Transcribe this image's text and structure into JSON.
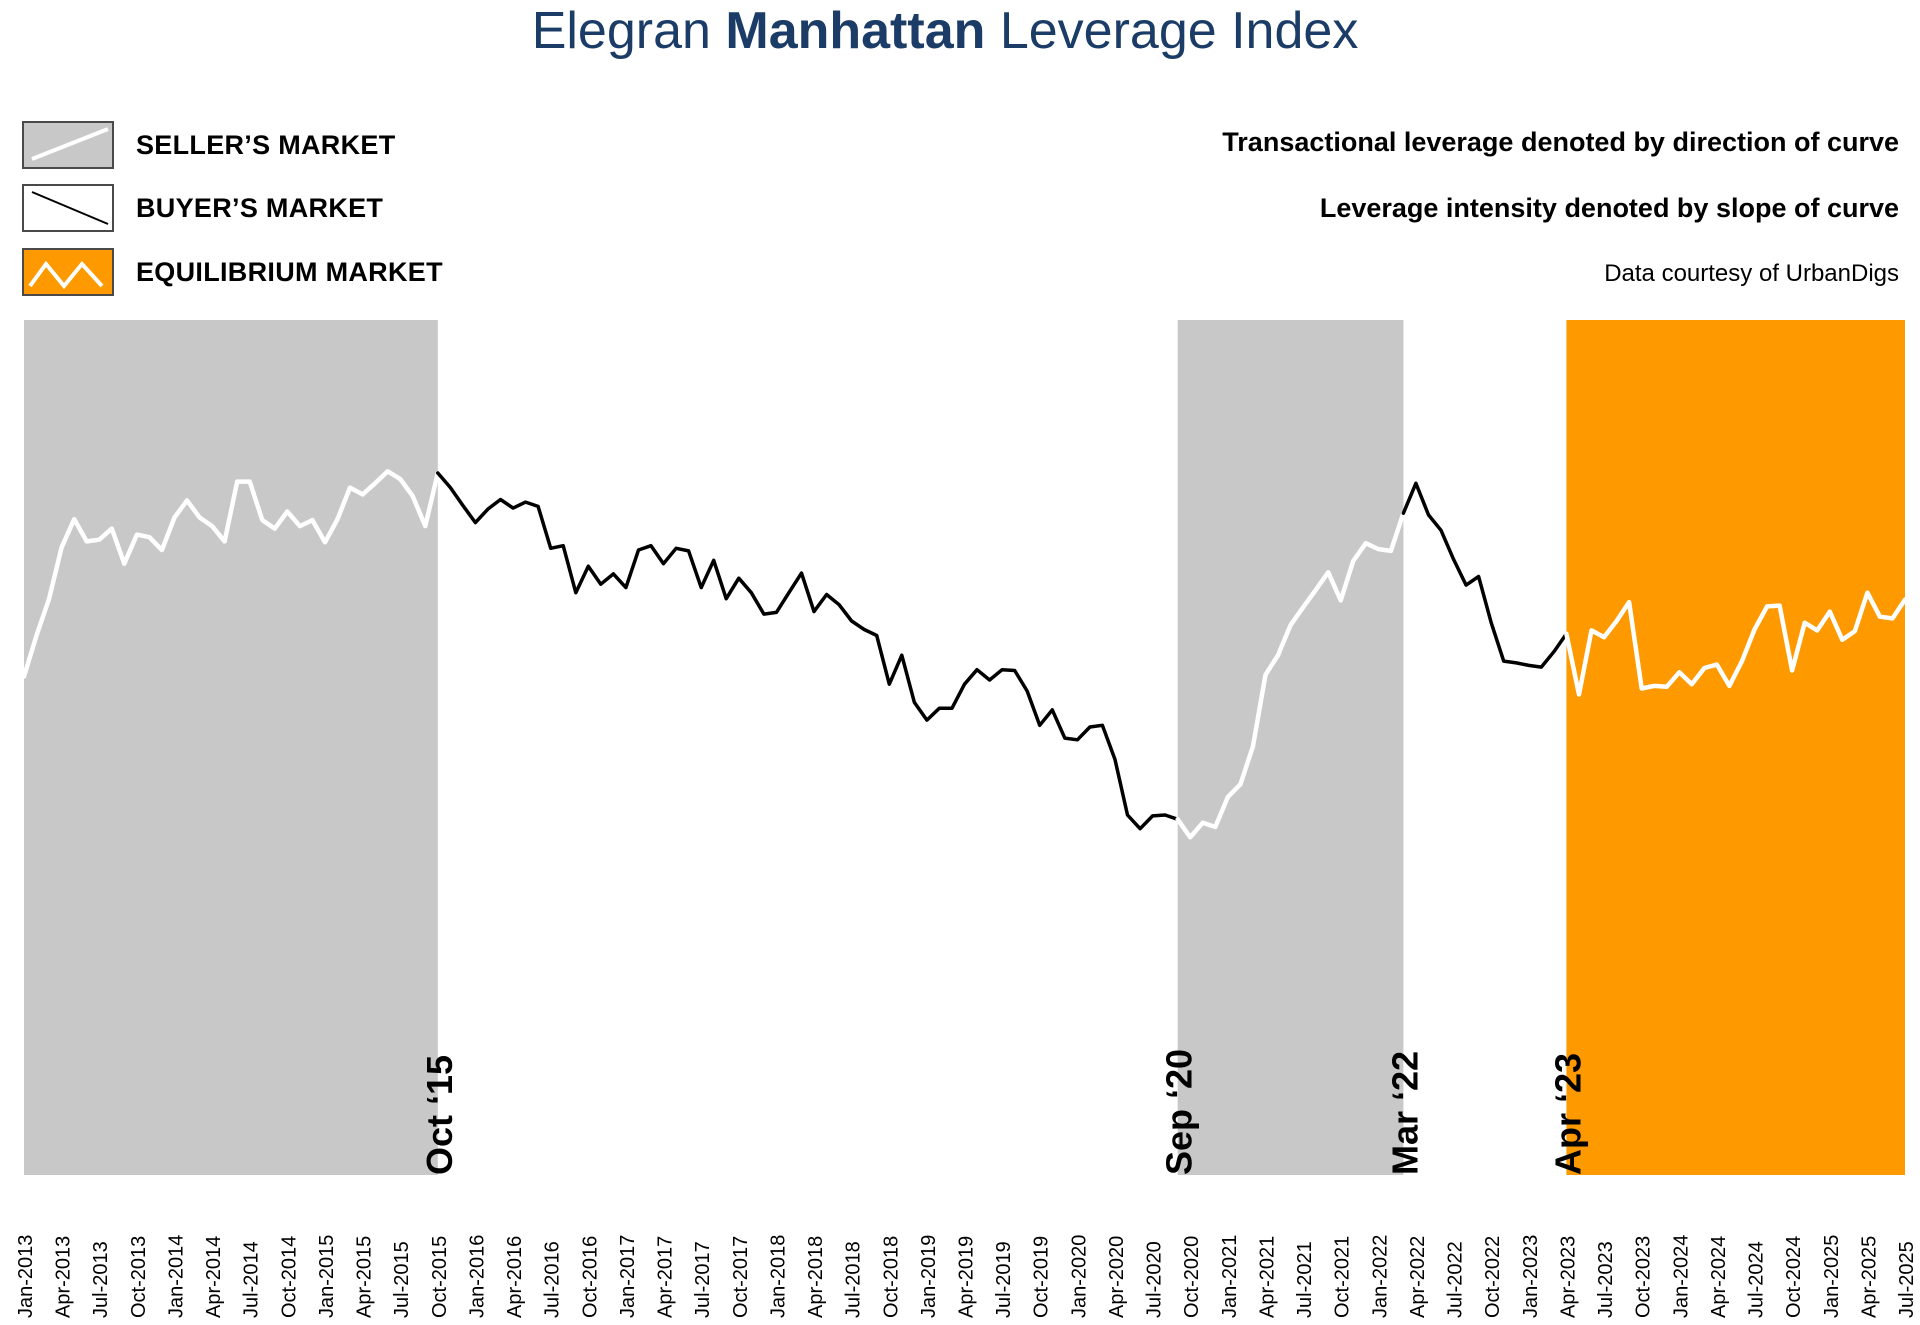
{
  "header": {
    "title_prefix": "Elegran ",
    "title_bold": "Manhattan",
    "title_suffix": " Leverage Index"
  },
  "legend": [
    {
      "label": "SELLER’S MARKET",
      "icon": "rising-line-icon",
      "fill": "#c8c8c8",
      "line": "#ffffff"
    },
    {
      "label": "BUYER’S MARKET",
      "icon": "falling-line-icon",
      "fill": "#ffffff",
      "line": "#000000"
    },
    {
      "label": "EQUILIBRIUM MARKET",
      "icon": "zigzag-line-icon",
      "fill": "#ff9900",
      "line": "#ffffff"
    }
  ],
  "notes": {
    "direction": "Transactional leverage denoted by direction of curve",
    "slope": "Leverage intensity denoted by slope of curve",
    "source": "Data courtesy of UrbanDigs"
  },
  "colors": {
    "title": "#1b3c66",
    "seller_band": "#c8c8c8",
    "equilibrium_band": "#ff9900",
    "seller_line": "#ffffff",
    "buyer_line": "#000000",
    "equilibrium_line": "#ffffff"
  },
  "chart_data": {
    "type": "line",
    "title": "",
    "xlabel": "",
    "ylabel": "",
    "x_start": "Jan-2013",
    "x_end": "Jul-2025",
    "x_tick_labels": [
      "Jan-2013",
      "Apr-2013",
      "Jul-2013",
      "Oct-2013",
      "Jan-2014",
      "Apr-2014",
      "Jul-2014",
      "Oct-2014",
      "Jan-2015",
      "Apr-2015",
      "Jul-2015",
      "Oct-2015",
      "Jan-2016",
      "Apr-2016",
      "Jul-2016",
      "Oct-2016",
      "Jan-2017",
      "Apr-2017",
      "Jul-2017",
      "Oct-2017",
      "Jan-2018",
      "Apr-2018",
      "Jul-2018",
      "Oct-2018",
      "Jan-2019",
      "Apr-2019",
      "Jul-2019",
      "Oct-2019",
      "Jan-2020",
      "Apr-2020",
      "Jul-2020",
      "Oct-2020",
      "Jan-2021",
      "Apr-2021",
      "Jul-2021",
      "Oct-2021",
      "Jan-2022",
      "Apr-2022",
      "Jul-2022",
      "Oct-2022",
      "Jan-2023",
      "Apr-2023",
      "Jul-2023",
      "Oct-2023",
      "Jan-2024",
      "Apr-2024",
      "Jul-2024",
      "Oct-2024",
      "Jan-2025",
      "Apr-2025",
      "Jul-2025"
    ],
    "ylim": [
      0,
      100
    ],
    "y_axis_shown": false,
    "values": [
      58.3,
      63.1,
      67.4,
      73.4,
      76.7,
      74.1,
      74.3,
      75.6,
      71.5,
      74.9,
      74.6,
      73.1,
      76.9,
      78.9,
      76.9,
      75.9,
      74.1,
      81.1,
      81.1,
      76.6,
      75.6,
      77.6,
      75.9,
      76.6,
      74.0,
      76.7,
      80.4,
      79.6,
      80.9,
      82.3,
      81.4,
      79.4,
      75.9,
      82.1,
      80.4,
      78.3,
      76.3,
      77.9,
      79.0,
      78.0,
      78.7,
      78.2,
      73.3,
      73.6,
      68.1,
      71.2,
      69.1,
      70.3,
      68.7,
      73.1,
      73.6,
      71.5,
      73.3,
      73.0,
      68.7,
      71.9,
      67.4,
      69.8,
      68.1,
      65.6,
      65.8,
      68.1,
      70.4,
      65.9,
      67.9,
      66.7,
      64.8,
      63.8,
      63.1,
      57.4,
      60.8,
      55.3,
      53.2,
      54.6,
      54.6,
      57.4,
      59.1,
      57.9,
      59.1,
      59.0,
      56.6,
      52.6,
      54.4,
      51.1,
      50.9,
      52.4,
      52.6,
      48.6,
      42.1,
      40.5,
      42.0,
      42.1,
      41.6,
      39.5,
      41.2,
      40.7,
      44.2,
      45.7,
      50.1,
      58.5,
      60.8,
      64.3,
      66.4,
      68.4,
      70.5,
      67.2,
      71.8,
      73.9,
      73.2,
      73.0,
      77.4,
      80.9,
      77.2,
      75.4,
      72.0,
      69.0,
      70.0,
      64.6,
      60.1,
      59.9,
      59.6,
      59.4,
      61.2,
      63.3,
      56.2,
      63.7,
      62.9,
      64.8,
      67.0,
      56.9,
      57.2,
      57.1,
      58.8,
      57.4,
      59.3,
      59.7,
      57.2,
      60.1,
      63.8,
      66.5,
      66.6,
      59.0,
      64.6,
      63.7,
      65.9,
      62.6,
      63.6,
      68.1,
      65.3,
      65.1,
      67.3,
      68.2
    ],
    "segments": [
      {
        "type": "seller",
        "start": "Jan-2013",
        "end": "Oct-2015",
        "label": "Oct ‘15"
      },
      {
        "type": "buyer",
        "start": "Oct-2015",
        "end": "Sep-2020",
        "label": "Sep ‘20"
      },
      {
        "type": "seller",
        "start": "Sep-2020",
        "end": "Mar-2022",
        "label": "Mar ‘22"
      },
      {
        "type": "buyer",
        "start": "Mar-2022",
        "end": "Apr-2023",
        "label": "Apr ‘23"
      },
      {
        "type": "equilibrium",
        "start": "Apr-2023",
        "end": "Jul-2025",
        "label": ""
      }
    ],
    "grid": false
  }
}
